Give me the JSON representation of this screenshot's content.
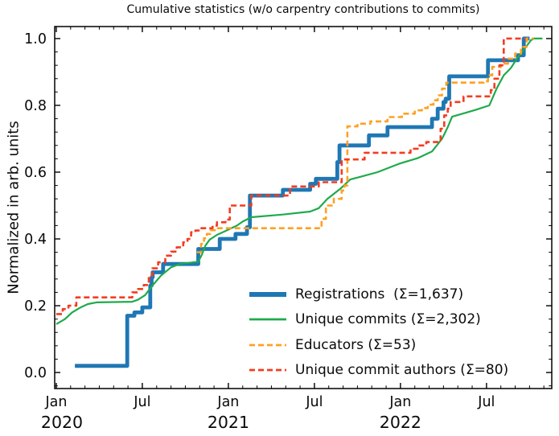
{
  "chart_data": {
    "type": "line",
    "title": "Cumulative statistics (w/o carpentry contributions to commits)",
    "xlabel": "",
    "ylabel": "Normalized in arb. units",
    "x_unit": "months since Jan 2020",
    "xlim": [
      -0.11,
      34.55
    ],
    "ylim": [
      -0.048,
      1.036
    ],
    "grid": false,
    "legend_position": "lower right inside plot",
    "x_major_ticks": [
      {
        "m": 0,
        "label": "Jan",
        "year": "2020"
      },
      {
        "m": 6,
        "label": "Jul",
        "year": ""
      },
      {
        "m": 12,
        "label": "Jan",
        "year": "2021"
      },
      {
        "m": 18,
        "label": "Jul",
        "year": ""
      },
      {
        "m": 24,
        "label": "Jan",
        "year": "2022"
      },
      {
        "m": 30,
        "label": "Jul",
        "year": ""
      }
    ],
    "x_minor_step_months": 1,
    "y_major_ticks": [
      0.0,
      0.2,
      0.4,
      0.6,
      0.8,
      1.0
    ],
    "y_minor_step": 0.04,
    "tick_direction": "in",
    "series": [
      {
        "name": "Registrations  (Σ=1,637)",
        "total": "1,637",
        "color": "#1f77b4",
        "width": 4.8,
        "dash": null,
        "drawstyle": "steps-post",
        "points": [
          [
            1.3,
            0.02
          ],
          [
            4.95,
            0.17
          ],
          [
            5.45,
            0.18
          ],
          [
            6.0,
            0.195
          ],
          [
            6.55,
            0.26
          ],
          [
            6.65,
            0.285
          ],
          [
            6.72,
            0.3
          ],
          [
            7.45,
            0.325
          ],
          [
            9.9,
            0.37
          ],
          [
            11.4,
            0.4
          ],
          [
            12.5,
            0.415
          ],
          [
            13.3,
            0.435
          ],
          [
            13.5,
            0.53
          ],
          [
            15.8,
            0.547
          ],
          [
            17.7,
            0.565
          ],
          [
            18.1,
            0.58
          ],
          [
            19.6,
            0.63
          ],
          [
            19.75,
            0.68
          ],
          [
            21.8,
            0.71
          ],
          [
            23.1,
            0.735
          ],
          [
            26.2,
            0.76
          ],
          [
            26.6,
            0.79
          ],
          [
            27.0,
            0.81
          ],
          [
            27.15,
            0.82
          ],
          [
            27.4,
            0.887
          ],
          [
            30.1,
            0.935
          ],
          [
            32.2,
            0.95
          ],
          [
            32.6,
            1.0
          ],
          [
            33.0,
            1.0
          ]
        ]
      },
      {
        "name": "Unique commits (Σ=2,302)",
        "total": "2,302",
        "color": "#1faa4b",
        "width": 2.2,
        "dash": null,
        "drawstyle": "linear",
        "points": [
          [
            0,
            0.145
          ],
          [
            0.6,
            0.16
          ],
          [
            1.1,
            0.18
          ],
          [
            1.7,
            0.195
          ],
          [
            2.2,
            0.205
          ],
          [
            2.8,
            0.21
          ],
          [
            5.3,
            0.212
          ],
          [
            5.7,
            0.218
          ],
          [
            6.2,
            0.232
          ],
          [
            6.7,
            0.26
          ],
          [
            7.3,
            0.29
          ],
          [
            8.0,
            0.315
          ],
          [
            8.6,
            0.325
          ],
          [
            9.9,
            0.332
          ],
          [
            10.15,
            0.352
          ],
          [
            10.4,
            0.38
          ],
          [
            10.7,
            0.398
          ],
          [
            11.2,
            0.412
          ],
          [
            11.8,
            0.424
          ],
          [
            12.6,
            0.44
          ],
          [
            13.0,
            0.452
          ],
          [
            13.6,
            0.465
          ],
          [
            15.8,
            0.473
          ],
          [
            17.7,
            0.482
          ],
          [
            18.3,
            0.492
          ],
          [
            18.9,
            0.52
          ],
          [
            19.8,
            0.55
          ],
          [
            20.5,
            0.578
          ],
          [
            21.2,
            0.586
          ],
          [
            22.4,
            0.6
          ],
          [
            23.9,
            0.625
          ],
          [
            25.2,
            0.642
          ],
          [
            26.2,
            0.662
          ],
          [
            26.9,
            0.7
          ],
          [
            27.3,
            0.735
          ],
          [
            27.6,
            0.766
          ],
          [
            29.2,
            0.786
          ],
          [
            30.2,
            0.8
          ],
          [
            30.7,
            0.85
          ],
          [
            31.2,
            0.89
          ],
          [
            31.7,
            0.912
          ],
          [
            32.2,
            0.945
          ],
          [
            32.7,
            0.972
          ],
          [
            33.1,
            0.995
          ],
          [
            33.3,
            1.0
          ],
          [
            33.9,
            1.0
          ]
        ]
      },
      {
        "name": "Educators (Σ=53)",
        "total": "53",
        "color": "#ffa023",
        "width": 2.6,
        "dash": [
          7,
          4
        ],
        "drawstyle": "steps-post",
        "points": [
          [
            9.8,
            0.36
          ],
          [
            10.1,
            0.385
          ],
          [
            10.3,
            0.402
          ],
          [
            10.5,
            0.415
          ],
          [
            10.75,
            0.426
          ],
          [
            11.05,
            0.432
          ],
          [
            18.5,
            0.46
          ],
          [
            18.8,
            0.5
          ],
          [
            19.35,
            0.52
          ],
          [
            19.9,
            0.545
          ],
          [
            20.1,
            0.56
          ],
          [
            20.3,
            0.737
          ],
          [
            21.0,
            0.745
          ],
          [
            21.9,
            0.752
          ],
          [
            23.1,
            0.765
          ],
          [
            24.1,
            0.775
          ],
          [
            25.0,
            0.785
          ],
          [
            25.5,
            0.792
          ],
          [
            25.9,
            0.802
          ],
          [
            26.3,
            0.815
          ],
          [
            26.6,
            0.83
          ],
          [
            26.9,
            0.85
          ],
          [
            27.2,
            0.868
          ],
          [
            29.8,
            0.872
          ],
          [
            30.1,
            0.89
          ],
          [
            30.4,
            0.915
          ],
          [
            31.0,
            0.925
          ],
          [
            31.5,
            0.94
          ],
          [
            32.0,
            0.955
          ],
          [
            32.4,
            0.975
          ],
          [
            32.8,
            1.0
          ],
          [
            33.3,
            1.0
          ]
        ]
      },
      {
        "name": "Unique commit authors (Σ=80)",
        "total": "80",
        "color": "#f43c20",
        "width": 2.6,
        "dash": [
          7,
          4
        ],
        "drawstyle": "steps-post",
        "points": [
          [
            0,
            0.175
          ],
          [
            0.45,
            0.19
          ],
          [
            0.85,
            0.2
          ],
          [
            1.4,
            0.225
          ],
          [
            5.3,
            0.24
          ],
          [
            5.7,
            0.25
          ],
          [
            6.1,
            0.262
          ],
          [
            6.45,
            0.29
          ],
          [
            6.7,
            0.312
          ],
          [
            7.1,
            0.33
          ],
          [
            7.6,
            0.35
          ],
          [
            8.0,
            0.362
          ],
          [
            8.4,
            0.375
          ],
          [
            8.85,
            0.39
          ],
          [
            9.15,
            0.4
          ],
          [
            9.4,
            0.42
          ],
          [
            9.7,
            0.425
          ],
          [
            10.0,
            0.432
          ],
          [
            10.9,
            0.44
          ],
          [
            11.2,
            0.45
          ],
          [
            11.8,
            0.458
          ],
          [
            12.1,
            0.5
          ],
          [
            13.6,
            0.53
          ],
          [
            16.3,
            0.557
          ],
          [
            18.3,
            0.57
          ],
          [
            19.9,
            0.638
          ],
          [
            21.5,
            0.658
          ],
          [
            24.7,
            0.67
          ],
          [
            25.2,
            0.68
          ],
          [
            25.8,
            0.69
          ],
          [
            26.8,
            0.73
          ],
          [
            27.05,
            0.77
          ],
          [
            27.3,
            0.79
          ],
          [
            27.5,
            0.81
          ],
          [
            28.4,
            0.827
          ],
          [
            30.3,
            0.846
          ],
          [
            30.55,
            0.88
          ],
          [
            30.9,
            0.92
          ],
          [
            31.2,
            1.0
          ],
          [
            32.7,
            1.0
          ]
        ]
      }
    ]
  }
}
